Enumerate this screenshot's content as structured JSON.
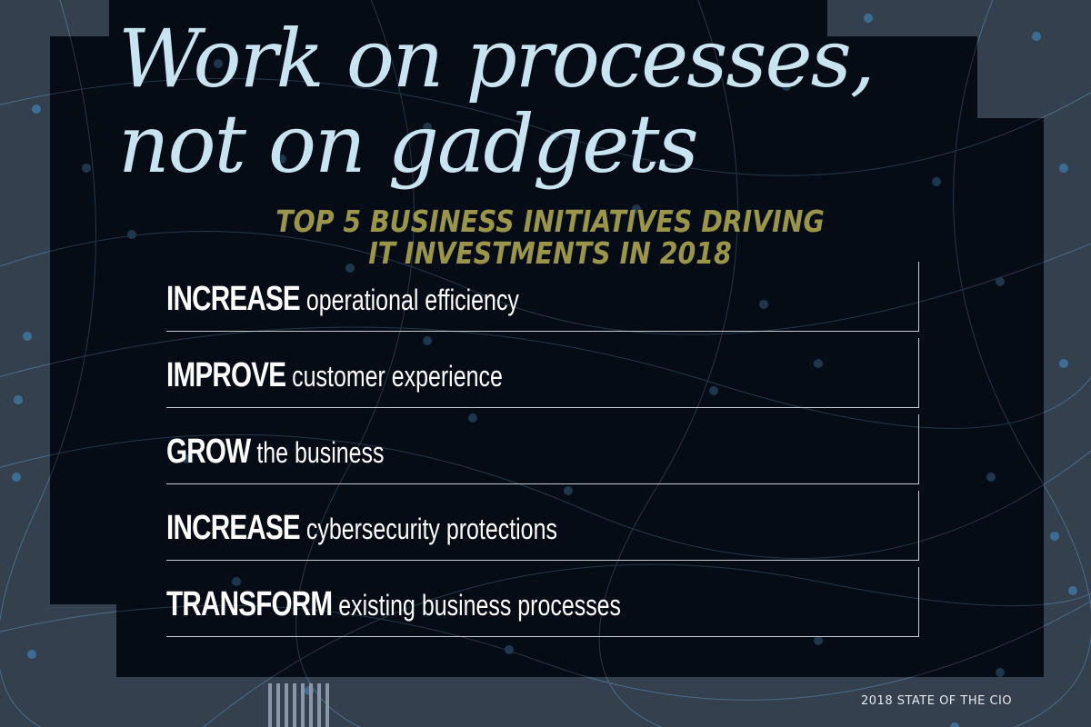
{
  "colors": {
    "background": "#34404e",
    "panel": "#060c15",
    "network_line": "#4b6a86",
    "network_node": "#3d6d92",
    "headline": "#c9e4f1",
    "subhead": "#9a9548",
    "item_text": "#ffffff",
    "rule": "#c7ccd3"
  },
  "headline": {
    "line1": "Work on processes,",
    "line2": "not on gadgets"
  },
  "subhead": {
    "line1": "TOP 5 BUSINESS INITIATIVES DRIVING",
    "line2": "IT INVESTMENTS IN 2018"
  },
  "initiatives": [
    {
      "verb": "INCREASE",
      "rest": "operational efficiency"
    },
    {
      "verb": "IMPROVE",
      "rest": "customer experience"
    },
    {
      "verb": "GROW",
      "rest": "the business"
    },
    {
      "verb": "INCREASE",
      "rest": "cybersecurity protections"
    },
    {
      "verb": "TRANSFORM",
      "rest": "existing business processes"
    }
  ],
  "footer": "2018 STATE OF THE CIO"
}
